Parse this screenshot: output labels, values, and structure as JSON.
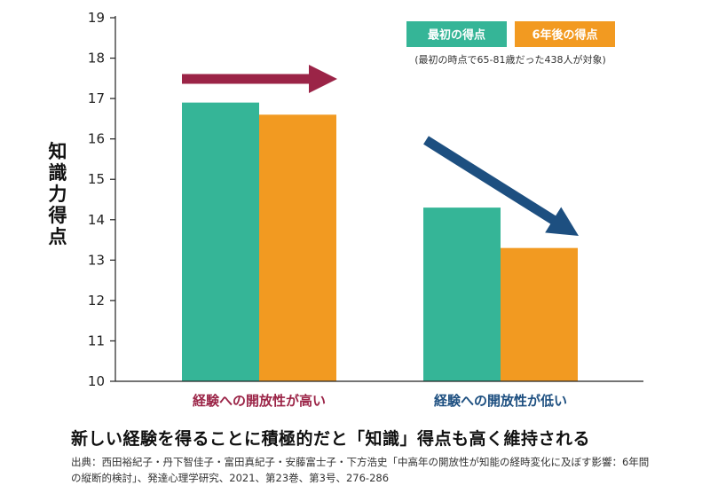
{
  "chart_data": {
    "type": "bar",
    "ylabel": "知識力得点",
    "ylim": [
      10,
      19
    ],
    "yticks": [
      10,
      11,
      12,
      13,
      14,
      15,
      16,
      17,
      18,
      19
    ],
    "categories": [
      "経験への開放性が高い",
      "経験への開放性が低い"
    ],
    "category_colors": [
      "#9b2447",
      "#1d4f80"
    ],
    "series": [
      {
        "name": "最初の得点",
        "color": "#35b597",
        "values": [
          16.9,
          14.3
        ]
      },
      {
        "name": "6年後の得点",
        "color": "#f29a21",
        "values": [
          16.6,
          13.3
        ]
      }
    ],
    "legend_note": "(最初の時点で65-81歳だった438人が対象)",
    "legend_position": "top-right",
    "grid": false,
    "arrows": [
      {
        "group": "経験への開放性が高い",
        "direction": "flat",
        "color": "#9b2447"
      },
      {
        "group": "経験への開放性が低い",
        "direction": "down",
        "color": "#1d4f80"
      }
    ]
  },
  "caption": "新しい経験を得ることに積極的だと「知識」得点も高く維持される",
  "source": "出典：西田裕紀子・丹下智佳子・富田真紀子・安藤富士子・下方浩史「中高年の開放性が知能の経時変化に及ぼす影響：6年間の縦断的検討」、発達心理学研究、2021、第23巻、第3号、276-286"
}
